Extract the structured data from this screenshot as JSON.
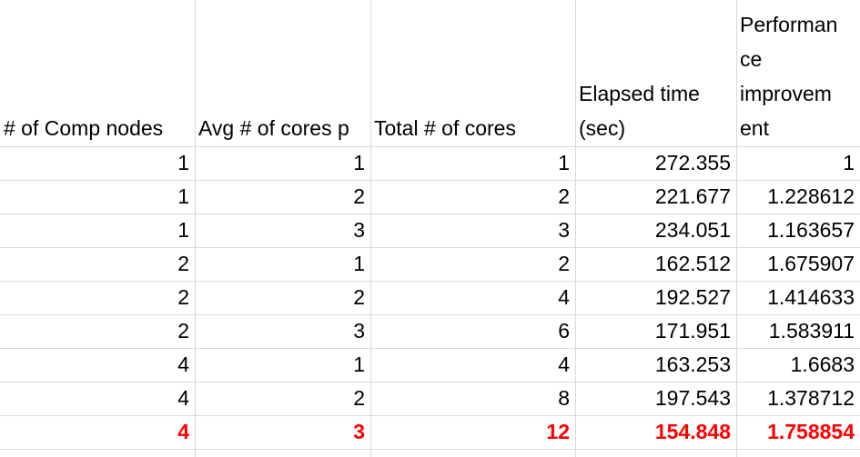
{
  "headers": [
    "# of Comp nodes",
    "Avg # of cores p",
    "Total # of cores",
    [
      "Elapsed time",
      "(sec)"
    ],
    [
      "Performan",
      "ce",
      "improvem",
      "ent"
    ]
  ],
  "rows": [
    [
      "1",
      "1",
      "1",
      "272.355",
      "1"
    ],
    [
      "1",
      "2",
      "2",
      "221.677",
      "1.228612"
    ],
    [
      "1",
      "3",
      "3",
      "234.051",
      "1.163657"
    ],
    [
      "2",
      "1",
      "2",
      "162.512",
      "1.675907"
    ],
    [
      "2",
      "2",
      "4",
      "192.527",
      "1.414633"
    ],
    [
      "2",
      "3",
      "6",
      "171.951",
      "1.583911"
    ],
    [
      "4",
      "1",
      "4",
      "163.253",
      "1.6683"
    ],
    [
      "4",
      "2",
      "8",
      "197.543",
      "1.378712"
    ],
    [
      "4",
      "3",
      "12",
      "154.848",
      "1.758854"
    ]
  ],
  "highlight_row": 8,
  "colors": {
    "highlight": "#ff0000",
    "gridline": "#d9d9d9"
  }
}
